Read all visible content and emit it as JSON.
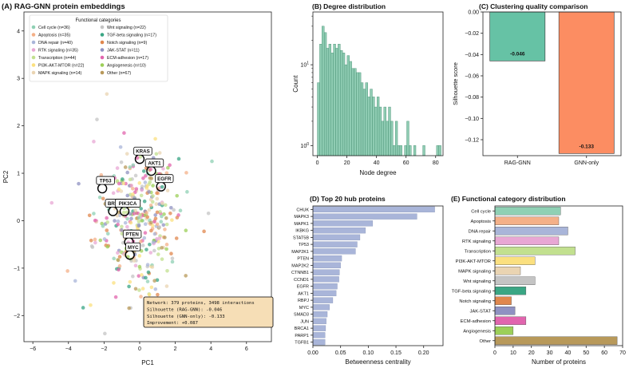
{
  "chart_data": [
    {
      "panel": "A",
      "type": "scatter",
      "title": "(A) RAG-GNN protein embeddings",
      "xlabel": "PC1",
      "ylabel": "PC2",
      "xlim": [
        -6.5,
        7.4
      ],
      "ylim": [
        -2.55,
        4.4
      ],
      "xticks": [
        -6,
        -4,
        -2,
        0,
        2,
        4,
        6
      ],
      "yticks": [
        -2,
        -1,
        0,
        1,
        2,
        3,
        4
      ],
      "grid": false,
      "legend": {
        "title": "Functional categories",
        "placement": "top-left",
        "entries": [
          {
            "label": "Cell cycle (n=36)",
            "color": "#8fd0b4"
          },
          {
            "label": "Apoptosis (n=35)",
            "color": "#f4b088"
          },
          {
            "label": "DNA repair (n=40)",
            "color": "#a9b5d9"
          },
          {
            "label": "RTK signaling (n=35)",
            "color": "#e8a7d4"
          },
          {
            "label": "Transcription (n=44)",
            "color": "#c2e08f"
          },
          {
            "label": "PI3K-AKT-MTOR (n=22)",
            "color": "#fbe07f"
          },
          {
            "label": "MAPK signaling (n=14)",
            "color": "#ead4b2"
          },
          {
            "label": "Wnt signaling (n=22)",
            "color": "#c4c4c4"
          },
          {
            "label": "TGF-beta signaling (n=17)",
            "color": "#3aa684"
          },
          {
            "label": "Notch signaling (n=9)",
            "color": "#e0874d"
          },
          {
            "label": "JAK-STAT (n=11)",
            "color": "#8f91c2"
          },
          {
            "label": "ECM-adhesion (n=17)",
            "color": "#e165ae"
          },
          {
            "label": "Angiogenesis (n=10)",
            "color": "#9ccf58"
          },
          {
            "label": "Other (n=67)",
            "color": "#b8995a"
          }
        ]
      },
      "labeled_points": [
        {
          "label": "KRAS",
          "x": 0.0,
          "y": 1.3
        },
        {
          "label": "AKT1",
          "x": 0.65,
          "y": 1.05
        },
        {
          "label": "EGFR",
          "x": 1.2,
          "y": 0.72
        },
        {
          "label": "TP53",
          "x": -2.1,
          "y": 0.68
        },
        {
          "label": "BRCA1",
          "x": -1.5,
          "y": 0.2
        },
        {
          "label": "PIK3CA",
          "x": -0.85,
          "y": 0.2
        },
        {
          "label": "PTEN",
          "x": -0.6,
          "y": -0.45
        },
        {
          "label": "MYC",
          "x": -0.55,
          "y": -0.72
        }
      ],
      "annotation": [
        "Network: 379 proteins, 3498 interactions",
        "Silhouette (RAG-GNN): -0.046",
        "Silhouette (GNN-only): -0.133",
        "Improvement: +0.087"
      ]
    },
    {
      "panel": "B",
      "type": "bar",
      "title": "(B) Degree distribution",
      "xlabel": "Node degree",
      "ylabel": "Count",
      "yscale": "log",
      "xlim": [
        -3,
        85
      ],
      "ylim": [
        0.75,
        45
      ],
      "xticks": [
        0,
        20,
        40,
        60,
        80
      ],
      "yticks": [
        {
          "value": 1,
          "label": "10^0"
        },
        {
          "value": 10,
          "label": "10^1"
        }
      ],
      "bin_width": 1.55,
      "bins": [
        {
          "x": 0,
          "count": 6
        },
        {
          "x": 1.55,
          "count": 18
        },
        {
          "x": 3.1,
          "count": 30
        },
        {
          "x": 4.65,
          "count": 25
        },
        {
          "x": 6.2,
          "count": 16
        },
        {
          "x": 7.75,
          "count": 18
        },
        {
          "x": 9.3,
          "count": 14
        },
        {
          "x": 10.85,
          "count": 18
        },
        {
          "x": 12.4,
          "count": 16
        },
        {
          "x": 13.95,
          "count": 18
        },
        {
          "x": 15.5,
          "count": 15
        },
        {
          "x": 17.05,
          "count": 14
        },
        {
          "x": 18.6,
          "count": 10
        },
        {
          "x": 20.15,
          "count": 13
        },
        {
          "x": 21.7,
          "count": 11
        },
        {
          "x": 23.25,
          "count": 9
        },
        {
          "x": 24.8,
          "count": 9
        },
        {
          "x": 26.35,
          "count": 8
        },
        {
          "x": 27.9,
          "count": 8
        },
        {
          "x": 29.45,
          "count": 6
        },
        {
          "x": 31,
          "count": 5
        },
        {
          "x": 32.55,
          "count": 6
        },
        {
          "x": 34.1,
          "count": 4
        },
        {
          "x": 35.65,
          "count": 5
        },
        {
          "x": 37.2,
          "count": 4
        },
        {
          "x": 38.75,
          "count": 3
        },
        {
          "x": 40.3,
          "count": 4
        },
        {
          "x": 41.85,
          "count": 3
        },
        {
          "x": 43.4,
          "count": 2
        },
        {
          "x": 44.95,
          "count": 3
        },
        {
          "x": 46.5,
          "count": 2
        },
        {
          "x": 48.05,
          "count": 3
        },
        {
          "x": 49.6,
          "count": 2
        },
        {
          "x": 51.15,
          "count": 1
        },
        {
          "x": 52.7,
          "count": 2
        },
        {
          "x": 54.25,
          "count": 1
        },
        {
          "x": 55.8,
          "count": 1
        },
        {
          "x": 58.9,
          "count": 1
        },
        {
          "x": 60.45,
          "count": 2
        },
        {
          "x": 62,
          "count": 1
        },
        {
          "x": 65.1,
          "count": 1
        },
        {
          "x": 71.3,
          "count": 1
        },
        {
          "x": 80.6,
          "count": 1
        },
        {
          "x": 82.15,
          "count": 1
        }
      ],
      "color": "#8fccb3"
    },
    {
      "panel": "C",
      "type": "bar",
      "title": "(C) Clustering quality comparison",
      "ylabel": "Silhouette score",
      "ylim": [
        -0.135,
        0.0
      ],
      "yticks": [
        0.0,
        -0.02,
        -0.04,
        -0.06,
        -0.08,
        -0.1,
        -0.12
      ],
      "categories": [
        "RAG-GNN",
        "GNN-only"
      ],
      "values": [
        -0.046,
        -0.133
      ],
      "value_labels": [
        "-0.046",
        "-0.133"
      ],
      "colors": [
        "#66c2a5",
        "#fc8d62"
      ]
    },
    {
      "panel": "D",
      "type": "bar",
      "orientation": "horizontal",
      "title": "(D) Top 20 hub proteins",
      "xlabel": "Betweenness centrality",
      "xlim": [
        0,
        0.235
      ],
      "xticks": [
        0.0,
        0.05,
        0.1,
        0.15,
        0.2
      ],
      "categories": [
        "CHUK",
        "MAPK3",
        "MAPK1",
        "IKBKG",
        "STAT5B",
        "TP53",
        "MAP2K1",
        "PTEN",
        "MAP2K2",
        "CTNNB1",
        "CCND1",
        "EGFR",
        "AKT1",
        "RBPJ",
        "MYC",
        "SMAD3",
        "JUN",
        "BRCA1",
        "PARP1",
        "TGFB1"
      ],
      "values": [
        0.22,
        0.188,
        0.108,
        0.095,
        0.085,
        0.08,
        0.077,
        0.052,
        0.05,
        0.048,
        0.047,
        0.044,
        0.042,
        0.036,
        0.03,
        0.026,
        0.024,
        0.023,
        0.022,
        0.022
      ],
      "color": "#a9b5d9"
    },
    {
      "panel": "E",
      "type": "bar",
      "orientation": "horizontal",
      "title": "(E) Functional category distribution",
      "xlabel": "Number of proteins",
      "xlim": [
        0,
        70
      ],
      "xticks": [
        0,
        10,
        20,
        30,
        40,
        50,
        60,
        70
      ],
      "categories": [
        "Cell cycle",
        "Apoptosis",
        "DNA repair",
        "RTK signaling",
        "Transcription",
        "PI3K-AKT-MTOR",
        "MAPK signaling",
        "Wnt signaling",
        "TGF-beta signaling",
        "Notch signaling",
        "JAK-STAT",
        "ECM-adhesion",
        "Angiogenesis",
        "Other"
      ],
      "values": [
        36,
        35,
        40,
        35,
        44,
        22,
        14,
        22,
        17,
        9,
        11,
        17,
        10,
        67
      ],
      "colors": [
        "#8fd0b4",
        "#f4b088",
        "#a9b5d9",
        "#e8a7d4",
        "#c2e08f",
        "#fbe07f",
        "#ead4b2",
        "#c4c4c4",
        "#3aa684",
        "#e0874d",
        "#8f91c2",
        "#e165ae",
        "#9ccf58",
        "#b8995a"
      ]
    }
  ]
}
